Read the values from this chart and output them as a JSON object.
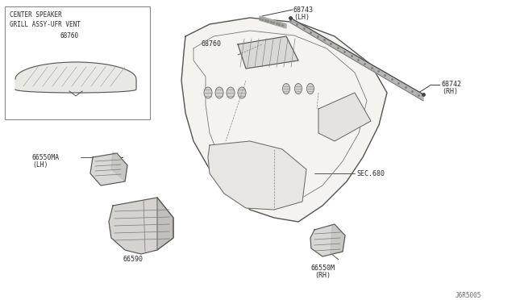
{
  "bg_color": "#f5f5f0",
  "line_color": "#3a3a3a",
  "text_color": "#2a2a2a",
  "fig_width": 6.4,
  "fig_height": 3.72,
  "dpi": 100,
  "diagram_id": "J6R5005",
  "inset_label_line1": "CENTER SPEAKER",
  "inset_label_line2": "GRILL ASSY-UFR VENT",
  "inset_part_no": "68760",
  "part_68743_label": "68743",
  "part_68743_sub": "(LH)",
  "part_68760_label": "68760",
  "part_68742_label": "68742",
  "part_68742_sub": "(RH)",
  "part_66550MA_label": "66550MA",
  "part_66550MA_sub": "(LH)",
  "part_66590_label": "66590",
  "part_SEC680_label": "SEC.680",
  "part_66550M_label": "66550M",
  "part_66550M_sub": "(RH)"
}
